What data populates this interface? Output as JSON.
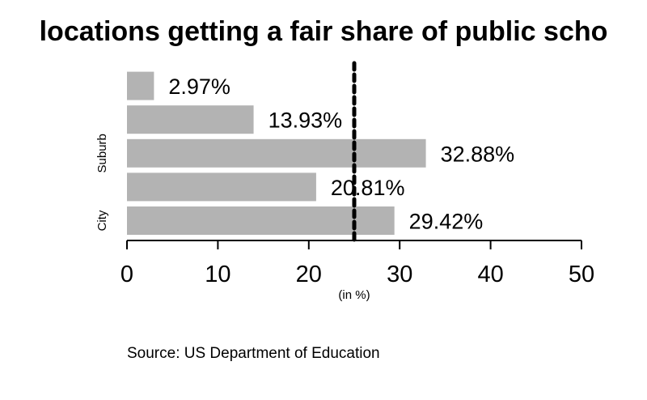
{
  "chart_data": {
    "type": "bar",
    "orientation": "horizontal",
    "title": "locations getting a fair share of public scho",
    "xlabel": "(in %)",
    "ylabel": "",
    "categories": [
      "City",
      "",
      "Suburb",
      "",
      ""
    ],
    "values": [
      29.42,
      20.81,
      32.88,
      13.93,
      2.97
    ],
    "value_labels": [
      "29.42%",
      "20.81%",
      "32.88%",
      "13.93%",
      "2.97%"
    ],
    "xlim": [
      0,
      50
    ],
    "xticks": [
      0,
      10,
      20,
      30,
      40,
      50
    ],
    "reference_line": {
      "value": 25,
      "style": "dotted"
    },
    "grid": false,
    "bar_color": "#b3b3b3"
  },
  "source": "Source: US Department of Education"
}
